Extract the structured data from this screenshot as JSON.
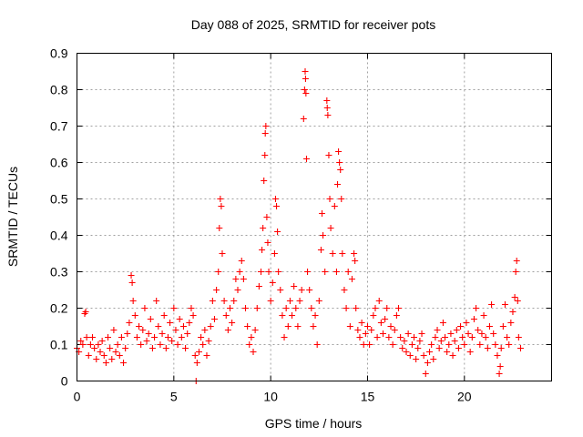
{
  "chart_data": {
    "type": "scatter",
    "title": "Day 088 of 2025, SRMTID for receiver pots",
    "xlabel": "GPS time / hours",
    "ylabel": "SRMTID / TECUs",
    "xlim": [
      0,
      24.5
    ],
    "ylim": [
      0,
      0.9
    ],
    "xticks": [
      0,
      5,
      10,
      15,
      20
    ],
    "yticks": [
      0,
      0.1,
      0.2,
      0.3,
      0.4,
      0.5,
      0.6,
      0.7,
      0.8,
      0.9
    ],
    "xtick_labels": [
      "0",
      "5",
      "10",
      "15",
      "20"
    ],
    "ytick_labels": [
      "0",
      "0.1",
      "0.2",
      "0.3",
      "0.4",
      "0.5",
      "0.6",
      "0.7",
      "0.8",
      "0.9"
    ],
    "grid": true,
    "marker": "+",
    "color": "#ff0000",
    "series": [
      {
        "name": "SRMTID",
        "points": [
          [
            0.0,
            0.09
          ],
          [
            0.1,
            0.08
          ],
          [
            0.2,
            0.11
          ],
          [
            0.3,
            0.1
          ],
          [
            0.4,
            0.185
          ],
          [
            0.45,
            0.19
          ],
          [
            0.5,
            0.12
          ],
          [
            0.6,
            0.07
          ],
          [
            0.7,
            0.1
          ],
          [
            0.8,
            0.12
          ],
          [
            0.9,
            0.09
          ],
          [
            1.0,
            0.06
          ],
          [
            1.1,
            0.1
          ],
          [
            1.2,
            0.08
          ],
          [
            1.3,
            0.11
          ],
          [
            1.4,
            0.07
          ],
          [
            1.5,
            0.05
          ],
          [
            1.6,
            0.12
          ],
          [
            1.7,
            0.09
          ],
          [
            1.8,
            0.06
          ],
          [
            1.9,
            0.14
          ],
          [
            2.0,
            0.08
          ],
          [
            2.1,
            0.1
          ],
          [
            2.2,
            0.07
          ],
          [
            2.3,
            0.12
          ],
          [
            2.4,
            0.05
          ],
          [
            2.5,
            0.09
          ],
          [
            2.6,
            0.13
          ],
          [
            2.7,
            0.16
          ],
          [
            2.8,
            0.29
          ],
          [
            2.85,
            0.27
          ],
          [
            2.9,
            0.22
          ],
          [
            3.0,
            0.18
          ],
          [
            3.1,
            0.12
          ],
          [
            3.2,
            0.15
          ],
          [
            3.3,
            0.1
          ],
          [
            3.4,
            0.14
          ],
          [
            3.5,
            0.2
          ],
          [
            3.6,
            0.11
          ],
          [
            3.7,
            0.13
          ],
          [
            3.8,
            0.17
          ],
          [
            3.9,
            0.09
          ],
          [
            4.0,
            0.12
          ],
          [
            4.1,
            0.22
          ],
          [
            4.2,
            0.15
          ],
          [
            4.3,
            0.1
          ],
          [
            4.4,
            0.13
          ],
          [
            4.5,
            0.18
          ],
          [
            4.6,
            0.09
          ],
          [
            4.7,
            0.12
          ],
          [
            4.8,
            0.16
          ],
          [
            4.9,
            0.11
          ],
          [
            5.0,
            0.2
          ],
          [
            5.1,
            0.14
          ],
          [
            5.2,
            0.1
          ],
          [
            5.3,
            0.17
          ],
          [
            5.4,
            0.12
          ],
          [
            5.5,
            0.15
          ],
          [
            5.6,
            0.09
          ],
          [
            5.7,
            0.13
          ],
          [
            5.8,
            0.16
          ],
          [
            5.9,
            0.2
          ],
          [
            6.0,
            0.18
          ],
          [
            6.1,
            0.07
          ],
          [
            6.15,
            0.0
          ],
          [
            6.2,
            0.05
          ],
          [
            6.3,
            0.08
          ],
          [
            6.4,
            0.12
          ],
          [
            6.5,
            0.1
          ],
          [
            6.6,
            0.14
          ],
          [
            6.7,
            0.07
          ],
          [
            6.8,
            0.11
          ],
          [
            6.9,
            0.15
          ],
          [
            7.0,
            0.22
          ],
          [
            7.1,
            0.17
          ],
          [
            7.2,
            0.25
          ],
          [
            7.3,
            0.3
          ],
          [
            7.35,
            0.42
          ],
          [
            7.4,
            0.5
          ],
          [
            7.45,
            0.48
          ],
          [
            7.5,
            0.35
          ],
          [
            7.6,
            0.22
          ],
          [
            7.7,
            0.18
          ],
          [
            7.8,
            0.14
          ],
          [
            7.9,
            0.2
          ],
          [
            8.0,
            0.16
          ],
          [
            8.1,
            0.22
          ],
          [
            8.2,
            0.28
          ],
          [
            8.3,
            0.25
          ],
          [
            8.4,
            0.3
          ],
          [
            8.5,
            0.33
          ],
          [
            8.6,
            0.28
          ],
          [
            8.7,
            0.2
          ],
          [
            8.8,
            0.15
          ],
          [
            8.9,
            0.1
          ],
          [
            9.0,
            0.12
          ],
          [
            9.1,
            0.08
          ],
          [
            9.2,
            0.14
          ],
          [
            9.3,
            0.2
          ],
          [
            9.4,
            0.26
          ],
          [
            9.5,
            0.3
          ],
          [
            9.55,
            0.36
          ],
          [
            9.6,
            0.42
          ],
          [
            9.65,
            0.55
          ],
          [
            9.7,
            0.62
          ],
          [
            9.72,
            0.68
          ],
          [
            9.75,
            0.7
          ],
          [
            9.8,
            0.45
          ],
          [
            9.85,
            0.38
          ],
          [
            9.9,
            0.3
          ],
          [
            10.0,
            0.22
          ],
          [
            10.1,
            0.27
          ],
          [
            10.2,
            0.35
          ],
          [
            10.25,
            0.5
          ],
          [
            10.3,
            0.48
          ],
          [
            10.35,
            0.41
          ],
          [
            10.4,
            0.3
          ],
          [
            10.5,
            0.25
          ],
          [
            10.6,
            0.18
          ],
          [
            10.7,
            0.12
          ],
          [
            10.8,
            0.2
          ],
          [
            10.9,
            0.15
          ],
          [
            11.0,
            0.22
          ],
          [
            11.1,
            0.18
          ],
          [
            11.2,
            0.26
          ],
          [
            11.3,
            0.2
          ],
          [
            11.4,
            0.15
          ],
          [
            11.5,
            0.22
          ],
          [
            11.6,
            0.25
          ],
          [
            11.7,
            0.72
          ],
          [
            11.75,
            0.8
          ],
          [
            11.78,
            0.85
          ],
          [
            11.8,
            0.83
          ],
          [
            11.82,
            0.79
          ],
          [
            11.85,
            0.61
          ],
          [
            11.9,
            0.3
          ],
          [
            12.0,
            0.25
          ],
          [
            12.1,
            0.2
          ],
          [
            12.2,
            0.15
          ],
          [
            12.3,
            0.18
          ],
          [
            12.4,
            0.1
          ],
          [
            12.5,
            0.22
          ],
          [
            12.6,
            0.36
          ],
          [
            12.65,
            0.46
          ],
          [
            12.7,
            0.4
          ],
          [
            12.8,
            0.3
          ],
          [
            12.9,
            0.77
          ],
          [
            12.92,
            0.75
          ],
          [
            12.95,
            0.73
          ],
          [
            13.0,
            0.62
          ],
          [
            13.05,
            0.5
          ],
          [
            13.1,
            0.42
          ],
          [
            13.2,
            0.35
          ],
          [
            13.3,
            0.48
          ],
          [
            13.4,
            0.3
          ],
          [
            13.45,
            0.54
          ],
          [
            13.5,
            0.63
          ],
          [
            13.55,
            0.6
          ],
          [
            13.6,
            0.58
          ],
          [
            13.65,
            0.5
          ],
          [
            13.7,
            0.35
          ],
          [
            13.8,
            0.25
          ],
          [
            13.9,
            0.2
          ],
          [
            14.0,
            0.3
          ],
          [
            14.1,
            0.15
          ],
          [
            14.2,
            0.28
          ],
          [
            14.3,
            0.35
          ],
          [
            14.35,
            0.33
          ],
          [
            14.4,
            0.2
          ],
          [
            14.5,
            0.14
          ],
          [
            14.6,
            0.12
          ],
          [
            14.7,
            0.16
          ],
          [
            14.8,
            0.1
          ],
          [
            14.9,
            0.13
          ],
          [
            15.0,
            0.15
          ],
          [
            15.1,
            0.1
          ],
          [
            15.2,
            0.14
          ],
          [
            15.3,
            0.18
          ],
          [
            15.4,
            0.2
          ],
          [
            15.5,
            0.12
          ],
          [
            15.6,
            0.22
          ],
          [
            15.7,
            0.16
          ],
          [
            15.8,
            0.13
          ],
          [
            15.9,
            0.17
          ],
          [
            16.0,
            0.2
          ],
          [
            16.1,
            0.12
          ],
          [
            16.2,
            0.15
          ],
          [
            16.3,
            0.1
          ],
          [
            16.4,
            0.14
          ],
          [
            16.5,
            0.18
          ],
          [
            16.6,
            0.2
          ],
          [
            16.7,
            0.12
          ],
          [
            16.8,
            0.09
          ],
          [
            16.9,
            0.11
          ],
          [
            17.0,
            0.08
          ],
          [
            17.1,
            0.13
          ],
          [
            17.2,
            0.07
          ],
          [
            17.3,
            0.1
          ],
          [
            17.4,
            0.12
          ],
          [
            17.5,
            0.06
          ],
          [
            17.6,
            0.09
          ],
          [
            17.7,
            0.11
          ],
          [
            17.8,
            0.13
          ],
          [
            17.9,
            0.07
          ],
          [
            18.0,
            0.02
          ],
          [
            18.1,
            0.05
          ],
          [
            18.2,
            0.08
          ],
          [
            18.3,
            0.1
          ],
          [
            18.4,
            0.06
          ],
          [
            18.5,
            0.12
          ],
          [
            18.6,
            0.14
          ],
          [
            18.7,
            0.09
          ],
          [
            18.8,
            0.11
          ],
          [
            18.9,
            0.16
          ],
          [
            19.0,
            0.12
          ],
          [
            19.1,
            0.08
          ],
          [
            19.2,
            0.1
          ],
          [
            19.3,
            0.13
          ],
          [
            19.4,
            0.07
          ],
          [
            19.5,
            0.11
          ],
          [
            19.6,
            0.14
          ],
          [
            19.7,
            0.09
          ],
          [
            19.8,
            0.15
          ],
          [
            19.9,
            0.12
          ],
          [
            20.0,
            0.1
          ],
          [
            20.1,
            0.16
          ],
          [
            20.2,
            0.13
          ],
          [
            20.3,
            0.08
          ],
          [
            20.4,
            0.12
          ],
          [
            20.5,
            0.17
          ],
          [
            20.6,
            0.2
          ],
          [
            20.7,
            0.14
          ],
          [
            20.8,
            0.1
          ],
          [
            20.9,
            0.13
          ],
          [
            21.0,
            0.18
          ],
          [
            21.1,
            0.12
          ],
          [
            21.2,
            0.09
          ],
          [
            21.3,
            0.15
          ],
          [
            21.4,
            0.21
          ],
          [
            21.5,
            0.13
          ],
          [
            21.6,
            0.1
          ],
          [
            21.7,
            0.07
          ],
          [
            21.8,
            0.02
          ],
          [
            21.85,
            0.04
          ],
          [
            21.9,
            0.09
          ],
          [
            22.0,
            0.15
          ],
          [
            22.1,
            0.21
          ],
          [
            22.2,
            0.12
          ],
          [
            22.3,
            0.1
          ],
          [
            22.4,
            0.16
          ],
          [
            22.5,
            0.19
          ],
          [
            22.6,
            0.23
          ],
          [
            22.65,
            0.3
          ],
          [
            22.7,
            0.33
          ],
          [
            22.75,
            0.22
          ],
          [
            22.8,
            0.12
          ],
          [
            22.9,
            0.09
          ]
        ]
      }
    ]
  }
}
